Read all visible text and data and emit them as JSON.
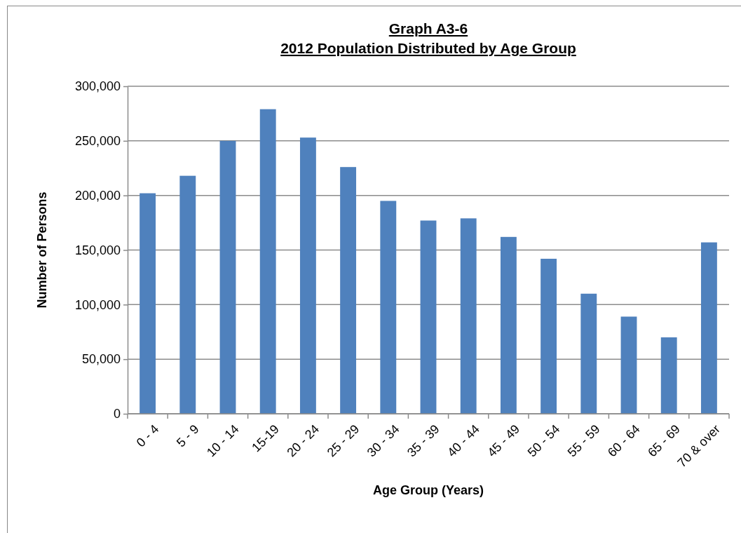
{
  "chart_data": {
    "type": "bar",
    "title": "Graph A3-6",
    "subtitle": "2012 Population Distributed by Age Group",
    "xlabel": "Age Group (Years)",
    "ylabel": "Number of Persons",
    "categories": [
      "0 - 4",
      "5 - 9",
      "10 - 14",
      "15-19",
      "20 - 24",
      "25 - 29",
      "30 - 34",
      "35 - 39",
      "40 - 44",
      "45 - 49",
      "50 - 54",
      "55 - 59",
      "60 - 64",
      "65 - 69",
      "70 & over"
    ],
    "values": [
      202000,
      218000,
      250000,
      279000,
      253000,
      226000,
      195000,
      177000,
      179000,
      162000,
      142000,
      110000,
      89000,
      70000,
      157000
    ],
    "color": "#4f81bd",
    "ylim": [
      0,
      300000
    ],
    "yticks": [
      {
        "value": 0,
        "label": "0"
      },
      {
        "value": 50000,
        "label": "50,000"
      },
      {
        "value": 100000,
        "label": "100,000"
      },
      {
        "value": 150000,
        "label": "150,000"
      },
      {
        "value": 200000,
        "label": "200,000"
      },
      {
        "value": 250000,
        "label": "250,000"
      },
      {
        "value": 300000,
        "label": "300,000"
      }
    ],
    "grid": "y"
  }
}
